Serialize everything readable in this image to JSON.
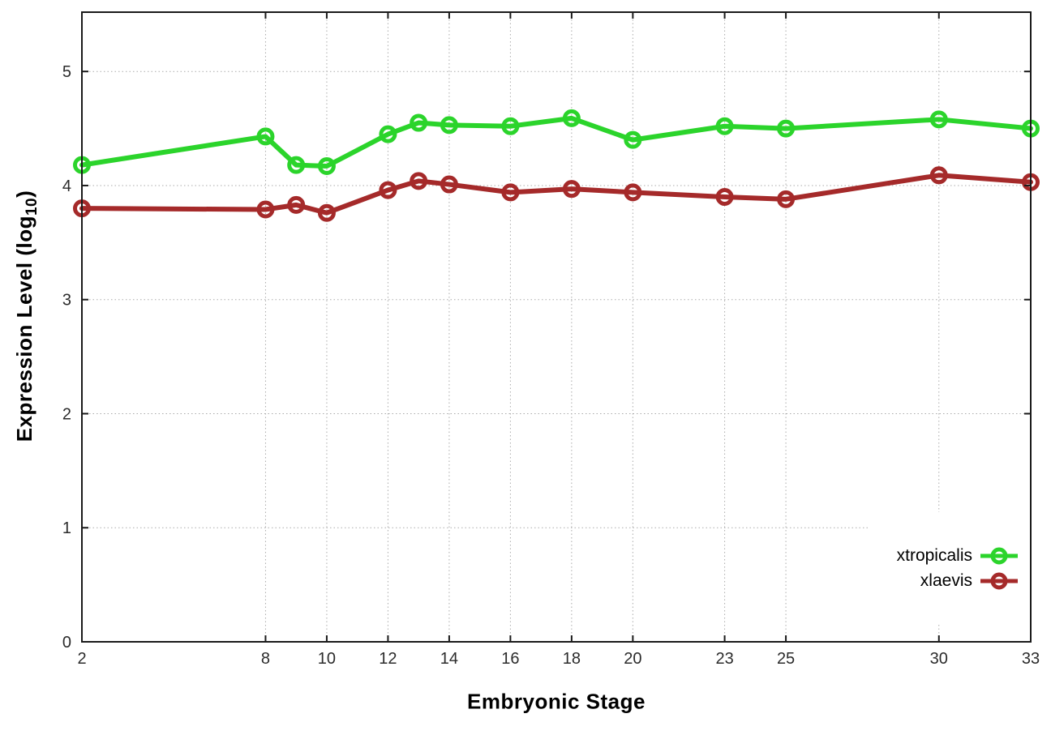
{
  "chart_data": {
    "type": "line",
    "title": "",
    "xlabel": "Embryonic Stage",
    "ylabel": {
      "main": "Expression Level (log",
      "sub": "10",
      "close": ")"
    },
    "xlim": [
      2,
      33
    ],
    "ylim": [
      0,
      5.52
    ],
    "x_ticks": [
      2,
      8,
      10,
      12,
      14,
      16,
      18,
      20,
      23,
      25,
      30,
      33
    ],
    "y_ticks": [
      0,
      1,
      2,
      3,
      4,
      5
    ],
    "grid": true,
    "legend_position": "inside-bottom-right",
    "marker": "open-circle",
    "x": [
      2,
      8,
      9,
      10,
      12,
      13,
      14,
      16,
      18,
      20,
      23,
      25,
      30,
      33
    ],
    "series": [
      {
        "name": "xtropicalis",
        "color": "#2bd42b",
        "values": [
          4.18,
          4.43,
          4.18,
          4.17,
          4.45,
          4.55,
          4.53,
          4.52,
          4.59,
          4.4,
          4.52,
          4.5,
          4.58,
          4.5
        ]
      },
      {
        "name": "xlaevis",
        "color": "#a52a2a",
        "values": [
          3.8,
          3.79,
          3.83,
          3.76,
          3.96,
          4.04,
          4.01,
          3.94,
          3.97,
          3.94,
          3.9,
          3.88,
          4.09,
          4.03
        ]
      }
    ],
    "style": {
      "grid_color": "#ababab",
      "border_color": "#1a1a1a",
      "tick_label_color": "#2b2b2b",
      "background": "#ffffff"
    }
  }
}
